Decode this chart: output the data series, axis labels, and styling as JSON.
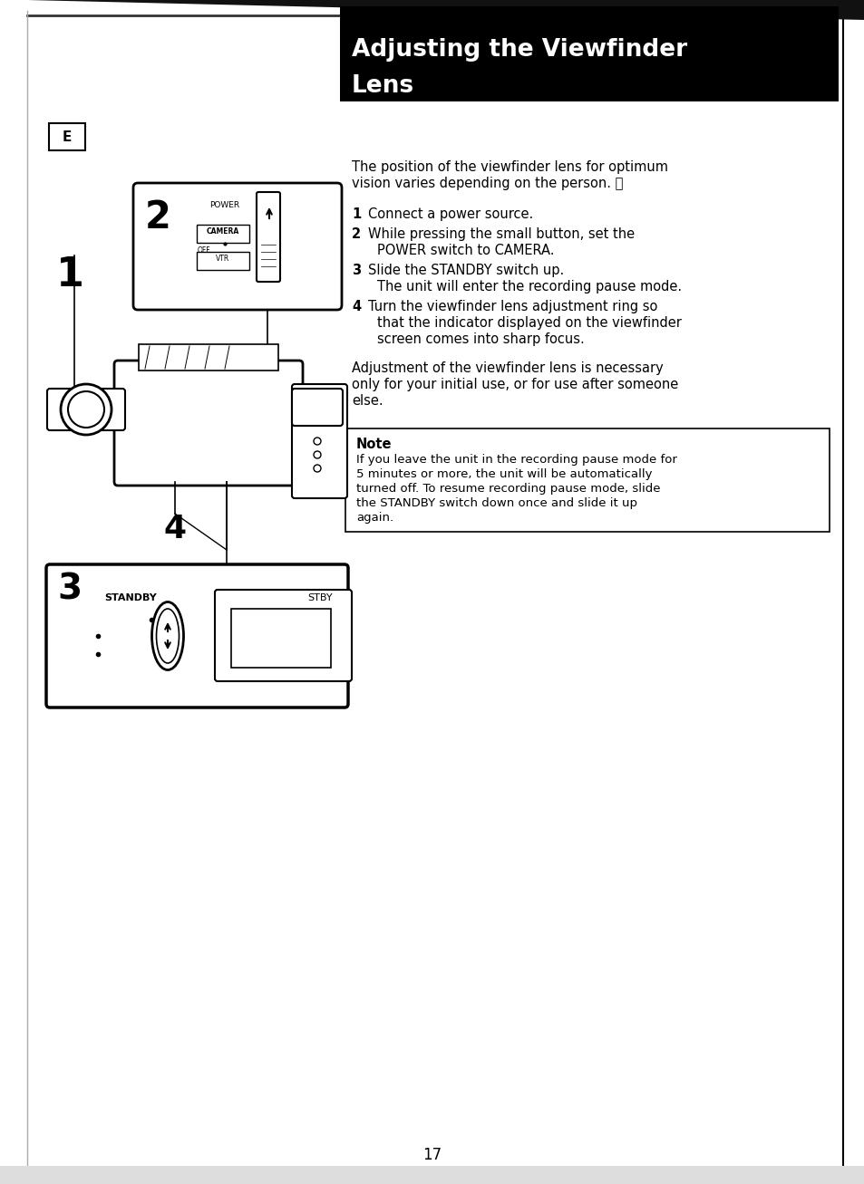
{
  "page_bg": "#ffffff",
  "header_bg": "#000000",
  "header_text_line1": "Adjusting the Viewfinder",
  "header_text_line2": "Lens",
  "header_text_color": "#ffffff",
  "header_font_size": 19,
  "e_label": "E",
  "intro_line1": "The position of the viewfinder lens for optimum",
  "intro_line2": "vision varies depending on the person. Ⓔ",
  "step1_num": "1",
  "step1_text": "Connect a power source.",
  "step2_num": "2",
  "step2_text_line1": "While pressing the small button, set the",
  "step2_text_line2": "POWER switch to CAMERA.",
  "step3_num": "3",
  "step3_text_bold": "Slide the STANDBY switch up.",
  "step3_text_extra": "The unit will enter the recording pause mode.",
  "step4_num": "4",
  "step4_text_line1": "Turn the viewfinder lens adjustment ring so",
  "step4_text_line2": "that the indicator displayed on the viewfinder",
  "step4_text_line3": "screen comes into sharp focus.",
  "adj_line1": "Adjustment of the viewfinder lens is necessary",
  "adj_line2": "only for your initial use, or for use after someone",
  "adj_line3": "else.",
  "note_title": "Note",
  "note_line1": "If you leave the unit in the recording pause mode for",
  "note_line2": "5 minutes or more, the unit will be automatically",
  "note_line3": "turned off. To resume recording pause mode, slide",
  "note_line4": "the STANDBY switch down once and slide it up",
  "note_line5": "again.",
  "page_number": "17",
  "text_color": "#000000",
  "border_color": "#000000"
}
